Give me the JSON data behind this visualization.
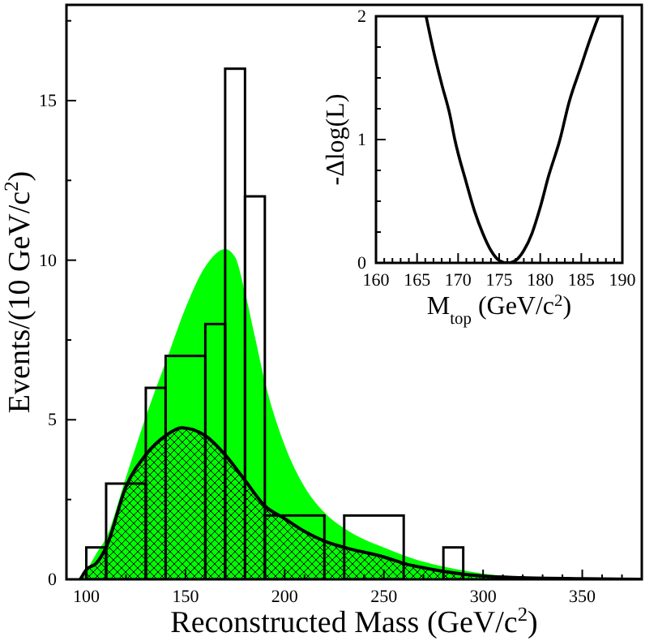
{
  "chart_data": [
    {
      "type": "histogram",
      "xlabel": "Reconstructed Mass (GeV/c$^{2}$)",
      "ylabel": "Events/(10 GeV/c$^{2}$)",
      "xlim": [
        90,
        380
      ],
      "ylim": [
        0,
        18
      ],
      "xticks": [
        {
          "value": 90,
          "label": null
        },
        100,
        {
          "value": 110,
          "label": null
        },
        {
          "value": 120,
          "label": null
        },
        {
          "value": 130,
          "label": null
        },
        {
          "value": 140,
          "label": null
        },
        150,
        {
          "value": 160,
          "label": null
        },
        {
          "value": 170,
          "label": null
        },
        {
          "value": 180,
          "label": null
        },
        {
          "value": 190,
          "label": null
        },
        200,
        {
          "value": 210,
          "label": null
        },
        {
          "value": 220,
          "label": null
        },
        {
          "value": 230,
          "label": null
        },
        {
          "value": 240,
          "label": null
        },
        250,
        {
          "value": 260,
          "label": null
        },
        {
          "value": 270,
          "label": null
        },
        {
          "value": 280,
          "label": null
        },
        {
          "value": 290,
          "label": null
        },
        300,
        {
          "value": 310,
          "label": null
        },
        {
          "value": 320,
          "label": null
        },
        {
          "value": 330,
          "label": null
        },
        {
          "value": 340,
          "label": null
        },
        350,
        {
          "value": 360,
          "label": null
        },
        {
          "value": 370,
          "label": null
        }
      ],
      "yticks": [
        0,
        {
          "value": 2.5,
          "label": null
        },
        5,
        {
          "value": 7.5,
          "label": null
        },
        10,
        {
          "value": 12.5,
          "label": null
        },
        15,
        {
          "value": 17.5,
          "label": null
        }
      ],
      "grid": false,
      "series": [
        {
          "type": "area",
          "color": "#00ff00",
          "x": [
            98,
            105,
            110,
            120,
            130,
            140,
            150,
            160,
            170,
            175,
            180,
            185,
            190,
            200,
            210,
            220,
            230,
            240,
            250,
            260,
            270,
            280,
            290,
            300,
            320,
            340,
            360,
            380
          ],
          "values": [
            0,
            0.8,
            1.3,
            3.2,
            5.1,
            6.8,
            8.5,
            9.8,
            10.35,
            10.1,
            9.0,
            7.6,
            6.2,
            4.2,
            2.9,
            2.1,
            1.6,
            1.25,
            1.0,
            0.75,
            0.55,
            0.4,
            0.28,
            0.18,
            0.08,
            0.03,
            0.01,
            0
          ]
        },
        {
          "type": "area",
          "color": "#000000",
          "x": [
            97,
            100,
            105,
            110,
            120,
            130,
            140,
            148,
            160,
            170,
            180,
            190,
            200,
            210,
            220,
            230,
            250,
            260,
            280,
            300,
            320,
            350,
            380
          ],
          "values": [
            0,
            0.3,
            0.5,
            1.0,
            2.9,
            3.9,
            4.5,
            4.75,
            4.5,
            3.9,
            3.1,
            2.3,
            1.9,
            1.5,
            1.2,
            1.0,
            0.7,
            0.5,
            0.25,
            0.1,
            0.05,
            0.02,
            0
          ]
        },
        {
          "color": "#000000",
          "bins": [
            100,
            110,
            130,
            140,
            160,
            170,
            180,
            190,
            220,
            230,
            260,
            280,
            290
          ],
          "values": [
            1,
            3,
            6,
            7,
            8,
            16,
            12,
            2,
            0,
            2,
            0,
            1
          ]
        }
      ]
    },
    {
      "type": "line",
      "xlabel": "M$_{top}$ (GeV/c$^{2}$)",
      "ylabel": "-Δlog(L)",
      "xlim": [
        160,
        190
      ],
      "ylim": [
        0,
        2
      ],
      "xticks": [
        160,
        {
          "value": 161,
          "label": null
        },
        {
          "value": 162,
          "label": null
        },
        {
          "value": 163,
          "label": null
        },
        {
          "value": 164,
          "label": null
        },
        165,
        {
          "value": 166,
          "label": null
        },
        {
          "value": 167,
          "label": null
        },
        {
          "value": 168,
          "label": null
        },
        {
          "value": 169,
          "label": null
        },
        170,
        {
          "value": 171,
          "label": null
        },
        {
          "value": 172,
          "label": null
        },
        {
          "value": 173,
          "label": null
        },
        {
          "value": 174,
          "label": null
        },
        175,
        {
          "value": 176,
          "label": null
        },
        {
          "value": 177,
          "label": null
        },
        {
          "value": 178,
          "label": null
        },
        {
          "value": 179,
          "label": null
        },
        180,
        {
          "value": 181,
          "label": null
        },
        {
          "value": 182,
          "label": null
        },
        {
          "value": 183,
          "label": null
        },
        {
          "value": 184,
          "label": null
        },
        185,
        {
          "value": 186,
          "label": null
        },
        {
          "value": 187,
          "label": null
        },
        {
          "value": 188,
          "label": null
        },
        {
          "value": 189,
          "label": null
        },
        190
      ],
      "yticks": [
        0,
        {
          "value": 0.25,
          "label": null
        },
        {
          "value": 0.5,
          "label": null
        },
        {
          "value": 0.75,
          "label": null
        },
        1,
        {
          "value": 1.25,
          "label": null
        },
        {
          "value": 1.5,
          "label": null
        },
        {
          "value": 1.75,
          "label": null
        },
        2
      ],
      "grid": false,
      "series": [
        {
          "color": "#000000",
          "x": [
            166.1,
            167,
            168,
            169,
            169.6,
            171,
            172,
            173,
            174,
            175,
            176,
            177,
            178,
            179,
            180,
            181,
            182.4,
            183.5,
            185,
            186,
            187.1
          ],
          "values": [
            2,
            1.72,
            1.45,
            1.2,
            1.0,
            0.65,
            0.42,
            0.24,
            0.1,
            0.02,
            0,
            0.02,
            0.1,
            0.24,
            0.45,
            0.7,
            1.0,
            1.3,
            1.6,
            1.8,
            2
          ]
        }
      ]
    }
  ]
}
